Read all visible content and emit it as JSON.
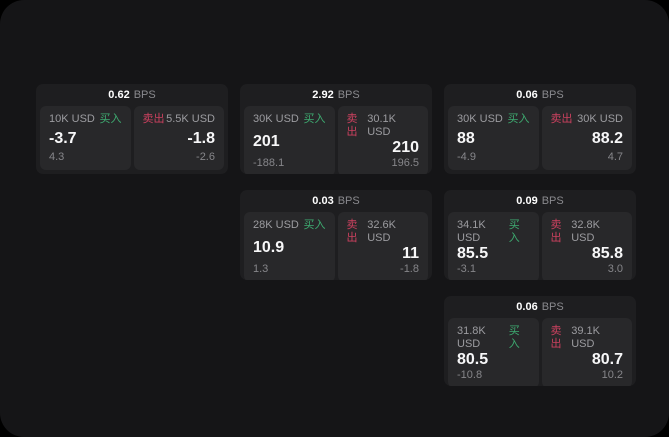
{
  "colors": {
    "buy_green": "#3eac71",
    "sell_red": "#cc415f",
    "window_bg": "#151517",
    "card_bg": "#1e1e20",
    "panel_bg": "#28282a"
  },
  "labels": {
    "buy": "买入",
    "sell": "卖出",
    "unit": "BPS"
  },
  "cards": [
    {
      "header": {
        "value": "0.62",
        "unit": "BPS"
      },
      "buy": {
        "amount": "10K USD",
        "side_label": "买入",
        "price": "-3.7",
        "change": "4.3"
      },
      "sell": {
        "amount": "5.5K USD",
        "side_label": "卖出",
        "price": "-1.8",
        "change": "-2.6"
      }
    },
    {
      "header": {
        "value": "2.92",
        "unit": "BPS"
      },
      "buy": {
        "amount": "30K USD",
        "side_label": "买入",
        "price": "201",
        "change": "-188.1"
      },
      "sell": {
        "amount": "30.1K USD",
        "side_label": "卖出",
        "price": "210",
        "change": "196.5"
      }
    },
    {
      "header": {
        "value": "0.06",
        "unit": "BPS"
      },
      "buy": {
        "amount": "30K USD",
        "side_label": "买入",
        "price": "88",
        "change": "-4.9"
      },
      "sell": {
        "amount": "30K USD",
        "side_label": "卖出",
        "price": "88.2",
        "change": "4.7"
      }
    },
    {
      "header": {
        "value": "0.03",
        "unit": "BPS"
      },
      "buy": {
        "amount": "28K USD",
        "side_label": "买入",
        "price": "10.9",
        "change": "1.3"
      },
      "sell": {
        "amount": "32.6K USD",
        "side_label": "卖出",
        "price": "11",
        "change": "-1.8"
      }
    },
    {
      "header": {
        "value": "0.09",
        "unit": "BPS"
      },
      "buy": {
        "amount": "34.1K USD",
        "side_label": "买入",
        "price": "85.5",
        "change": "-3.1"
      },
      "sell": {
        "amount": "32.8K USD",
        "side_label": "卖出",
        "price": "85.8",
        "change": "3.0"
      }
    },
    {
      "header": {
        "value": "0.06",
        "unit": "BPS"
      },
      "buy": {
        "amount": "31.8K USD",
        "side_label": "买入",
        "price": "80.5",
        "change": "-10.8"
      },
      "sell": {
        "amount": "39.1K USD",
        "side_label": "卖出",
        "price": "80.7",
        "change": "10.2"
      }
    }
  ]
}
